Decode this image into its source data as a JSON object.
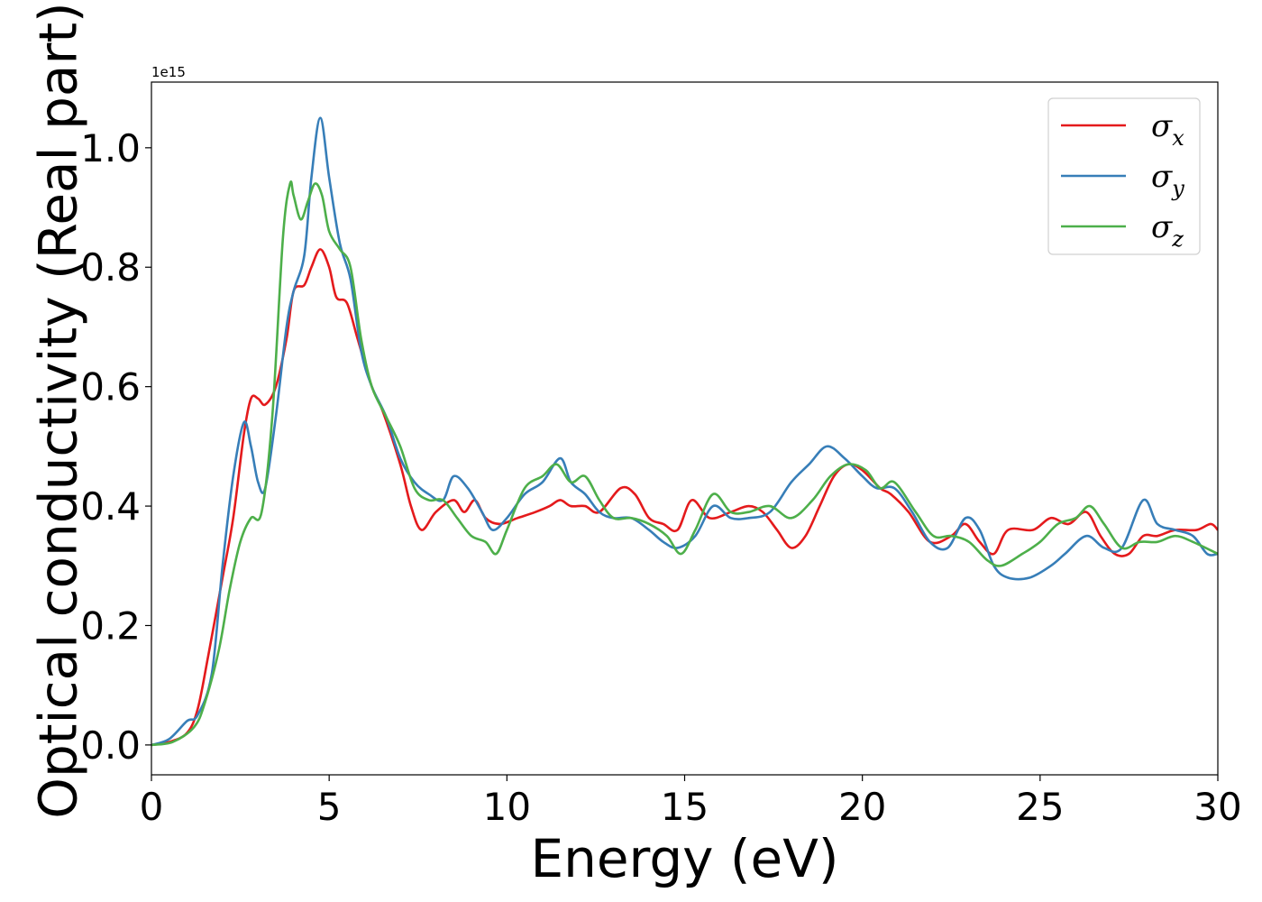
{
  "chart_data": {
    "type": "line",
    "title": "",
    "xlabel": "Energy (eV)",
    "ylabel": "Optical conductivity (Real part)",
    "y_offset_label": "1e15",
    "xlim": [
      0,
      30
    ],
    "ylim": [
      -0.05,
      1.11
    ],
    "x_ticks": [
      0,
      5,
      10,
      15,
      20,
      25,
      30
    ],
    "x_tick_labels": [
      "0",
      "5",
      "10",
      "15",
      "20",
      "25",
      "30"
    ],
    "y_ticks": [
      0.0,
      0.2,
      0.4,
      0.6,
      0.8,
      1.0
    ],
    "y_tick_labels": [
      "0.0",
      "0.2",
      "0.4",
      "0.6",
      "0.8",
      "1.0"
    ],
    "grid": false,
    "legend_position": "top-right",
    "series": [
      {
        "name": "σx",
        "label_base": "σ",
        "label_sub": "x",
        "color": "#e41a1c",
        "points": [
          [
            0,
            0.0
          ],
          [
            0.5,
            0.005
          ],
          [
            1.0,
            0.02
          ],
          [
            1.3,
            0.06
          ],
          [
            1.6,
            0.15
          ],
          [
            2.0,
            0.28
          ],
          [
            2.3,
            0.38
          ],
          [
            2.6,
            0.52
          ],
          [
            2.8,
            0.58
          ],
          [
            3.0,
            0.58
          ],
          [
            3.2,
            0.57
          ],
          [
            3.5,
            0.6
          ],
          [
            3.8,
            0.68
          ],
          [
            4.0,
            0.76
          ],
          [
            4.3,
            0.77
          ],
          [
            4.5,
            0.8
          ],
          [
            4.75,
            0.83
          ],
          [
            5.0,
            0.8
          ],
          [
            5.2,
            0.75
          ],
          [
            5.5,
            0.74
          ],
          [
            5.8,
            0.68
          ],
          [
            6.2,
            0.6
          ],
          [
            6.5,
            0.56
          ],
          [
            7.0,
            0.47
          ],
          [
            7.3,
            0.4
          ],
          [
            7.6,
            0.36
          ],
          [
            8.0,
            0.39
          ],
          [
            8.5,
            0.41
          ],
          [
            8.8,
            0.39
          ],
          [
            9.1,
            0.41
          ],
          [
            9.4,
            0.38
          ],
          [
            9.8,
            0.37
          ],
          [
            10.3,
            0.38
          ],
          [
            10.8,
            0.39
          ],
          [
            11.2,
            0.4
          ],
          [
            11.5,
            0.41
          ],
          [
            11.8,
            0.4
          ],
          [
            12.2,
            0.4
          ],
          [
            12.6,
            0.39
          ],
          [
            13.2,
            0.43
          ],
          [
            13.6,
            0.42
          ],
          [
            14.0,
            0.38
          ],
          [
            14.4,
            0.37
          ],
          [
            14.8,
            0.36
          ],
          [
            15.2,
            0.41
          ],
          [
            15.7,
            0.38
          ],
          [
            16.3,
            0.39
          ],
          [
            16.8,
            0.4
          ],
          [
            17.2,
            0.39
          ],
          [
            17.6,
            0.36
          ],
          [
            18.0,
            0.33
          ],
          [
            18.4,
            0.35
          ],
          [
            18.8,
            0.4
          ],
          [
            19.2,
            0.45
          ],
          [
            19.6,
            0.47
          ],
          [
            20.0,
            0.46
          ],
          [
            20.5,
            0.43
          ],
          [
            20.8,
            0.42
          ],
          [
            21.3,
            0.39
          ],
          [
            21.9,
            0.34
          ],
          [
            22.5,
            0.35
          ],
          [
            22.9,
            0.37
          ],
          [
            23.3,
            0.34
          ],
          [
            23.7,
            0.32
          ],
          [
            24.1,
            0.36
          ],
          [
            24.8,
            0.36
          ],
          [
            25.3,
            0.38
          ],
          [
            25.8,
            0.37
          ],
          [
            26.3,
            0.39
          ],
          [
            26.7,
            0.35
          ],
          [
            27.1,
            0.32
          ],
          [
            27.5,
            0.32
          ],
          [
            27.9,
            0.35
          ],
          [
            28.3,
            0.35
          ],
          [
            28.8,
            0.36
          ],
          [
            29.4,
            0.36
          ],
          [
            29.8,
            0.37
          ],
          [
            30.0,
            0.36
          ]
        ]
      },
      {
        "name": "σy",
        "label_base": "σ",
        "label_sub": "y",
        "color": "#377eb8",
        "points": [
          [
            0,
            0.0
          ],
          [
            0.5,
            0.01
          ],
          [
            1.0,
            0.04
          ],
          [
            1.3,
            0.05
          ],
          [
            1.7,
            0.12
          ],
          [
            2.0,
            0.3
          ],
          [
            2.3,
            0.45
          ],
          [
            2.6,
            0.54
          ],
          [
            2.8,
            0.5
          ],
          [
            3.0,
            0.44
          ],
          [
            3.2,
            0.43
          ],
          [
            3.5,
            0.55
          ],
          [
            3.8,
            0.7
          ],
          [
            4.0,
            0.76
          ],
          [
            4.3,
            0.82
          ],
          [
            4.5,
            0.95
          ],
          [
            4.75,
            1.05
          ],
          [
            5.0,
            0.95
          ],
          [
            5.3,
            0.84
          ],
          [
            5.6,
            0.78
          ],
          [
            5.9,
            0.66
          ],
          [
            6.2,
            0.6
          ],
          [
            6.6,
            0.55
          ],
          [
            7.0,
            0.48
          ],
          [
            7.4,
            0.44
          ],
          [
            7.8,
            0.42
          ],
          [
            8.2,
            0.41
          ],
          [
            8.5,
            0.45
          ],
          [
            8.9,
            0.43
          ],
          [
            9.3,
            0.39
          ],
          [
            9.6,
            0.36
          ],
          [
            10.0,
            0.38
          ],
          [
            10.5,
            0.42
          ],
          [
            11.0,
            0.44
          ],
          [
            11.5,
            0.48
          ],
          [
            11.8,
            0.44
          ],
          [
            12.2,
            0.42
          ],
          [
            12.6,
            0.39
          ],
          [
            13.0,
            0.38
          ],
          [
            13.5,
            0.38
          ],
          [
            14.0,
            0.36
          ],
          [
            14.4,
            0.34
          ],
          [
            14.8,
            0.33
          ],
          [
            15.3,
            0.35
          ],
          [
            15.8,
            0.4
          ],
          [
            16.3,
            0.38
          ],
          [
            16.8,
            0.38
          ],
          [
            17.4,
            0.39
          ],
          [
            18.0,
            0.44
          ],
          [
            18.5,
            0.47
          ],
          [
            19.0,
            0.5
          ],
          [
            19.5,
            0.48
          ],
          [
            20.0,
            0.45
          ],
          [
            20.4,
            0.43
          ],
          [
            20.9,
            0.43
          ],
          [
            21.4,
            0.39
          ],
          [
            21.9,
            0.34
          ],
          [
            22.4,
            0.33
          ],
          [
            22.9,
            0.38
          ],
          [
            23.3,
            0.36
          ],
          [
            23.7,
            0.3
          ],
          [
            24.1,
            0.28
          ],
          [
            24.7,
            0.28
          ],
          [
            25.3,
            0.3
          ],
          [
            25.7,
            0.32
          ],
          [
            26.3,
            0.35
          ],
          [
            26.8,
            0.33
          ],
          [
            27.3,
            0.33
          ],
          [
            27.9,
            0.41
          ],
          [
            28.3,
            0.37
          ],
          [
            28.8,
            0.36
          ],
          [
            29.3,
            0.35
          ],
          [
            29.7,
            0.32
          ],
          [
            30.0,
            0.32
          ]
        ]
      },
      {
        "name": "σz",
        "label_base": "σ",
        "label_sub": "z",
        "color": "#4daf4a",
        "points": [
          [
            0,
            0.0
          ],
          [
            0.6,
            0.005
          ],
          [
            1.2,
            0.03
          ],
          [
            1.5,
            0.07
          ],
          [
            1.9,
            0.16
          ],
          [
            2.2,
            0.26
          ],
          [
            2.5,
            0.34
          ],
          [
            2.8,
            0.38
          ],
          [
            3.1,
            0.39
          ],
          [
            3.4,
            0.55
          ],
          [
            3.7,
            0.85
          ],
          [
            3.9,
            0.94
          ],
          [
            4.0,
            0.92
          ],
          [
            4.2,
            0.88
          ],
          [
            4.4,
            0.91
          ],
          [
            4.6,
            0.94
          ],
          [
            4.8,
            0.92
          ],
          [
            5.0,
            0.86
          ],
          [
            5.3,
            0.83
          ],
          [
            5.6,
            0.8
          ],
          [
            5.9,
            0.68
          ],
          [
            6.2,
            0.6
          ],
          [
            6.6,
            0.55
          ],
          [
            7.0,
            0.5
          ],
          [
            7.4,
            0.43
          ],
          [
            7.8,
            0.41
          ],
          [
            8.2,
            0.41
          ],
          [
            8.6,
            0.38
          ],
          [
            9.0,
            0.35
          ],
          [
            9.4,
            0.34
          ],
          [
            9.7,
            0.32
          ],
          [
            10.0,
            0.36
          ],
          [
            10.5,
            0.43
          ],
          [
            11.0,
            0.45
          ],
          [
            11.4,
            0.47
          ],
          [
            11.8,
            0.44
          ],
          [
            12.2,
            0.45
          ],
          [
            12.6,
            0.41
          ],
          [
            13.0,
            0.38
          ],
          [
            13.5,
            0.38
          ],
          [
            14.0,
            0.37
          ],
          [
            14.5,
            0.35
          ],
          [
            14.9,
            0.32
          ],
          [
            15.3,
            0.36
          ],
          [
            15.8,
            0.42
          ],
          [
            16.3,
            0.39
          ],
          [
            16.8,
            0.39
          ],
          [
            17.4,
            0.4
          ],
          [
            18.0,
            0.38
          ],
          [
            18.6,
            0.41
          ],
          [
            19.1,
            0.45
          ],
          [
            19.6,
            0.47
          ],
          [
            20.1,
            0.46
          ],
          [
            20.5,
            0.43
          ],
          [
            20.9,
            0.44
          ],
          [
            21.5,
            0.39
          ],
          [
            22.0,
            0.35
          ],
          [
            22.5,
            0.35
          ],
          [
            23.0,
            0.34
          ],
          [
            23.5,
            0.31
          ],
          [
            23.9,
            0.3
          ],
          [
            24.5,
            0.32
          ],
          [
            25.0,
            0.34
          ],
          [
            25.5,
            0.37
          ],
          [
            26.0,
            0.38
          ],
          [
            26.4,
            0.4
          ],
          [
            26.8,
            0.37
          ],
          [
            27.3,
            0.33
          ],
          [
            27.8,
            0.34
          ],
          [
            28.3,
            0.34
          ],
          [
            28.8,
            0.35
          ],
          [
            29.3,
            0.34
          ],
          [
            30.0,
            0.32
          ]
        ]
      }
    ]
  }
}
